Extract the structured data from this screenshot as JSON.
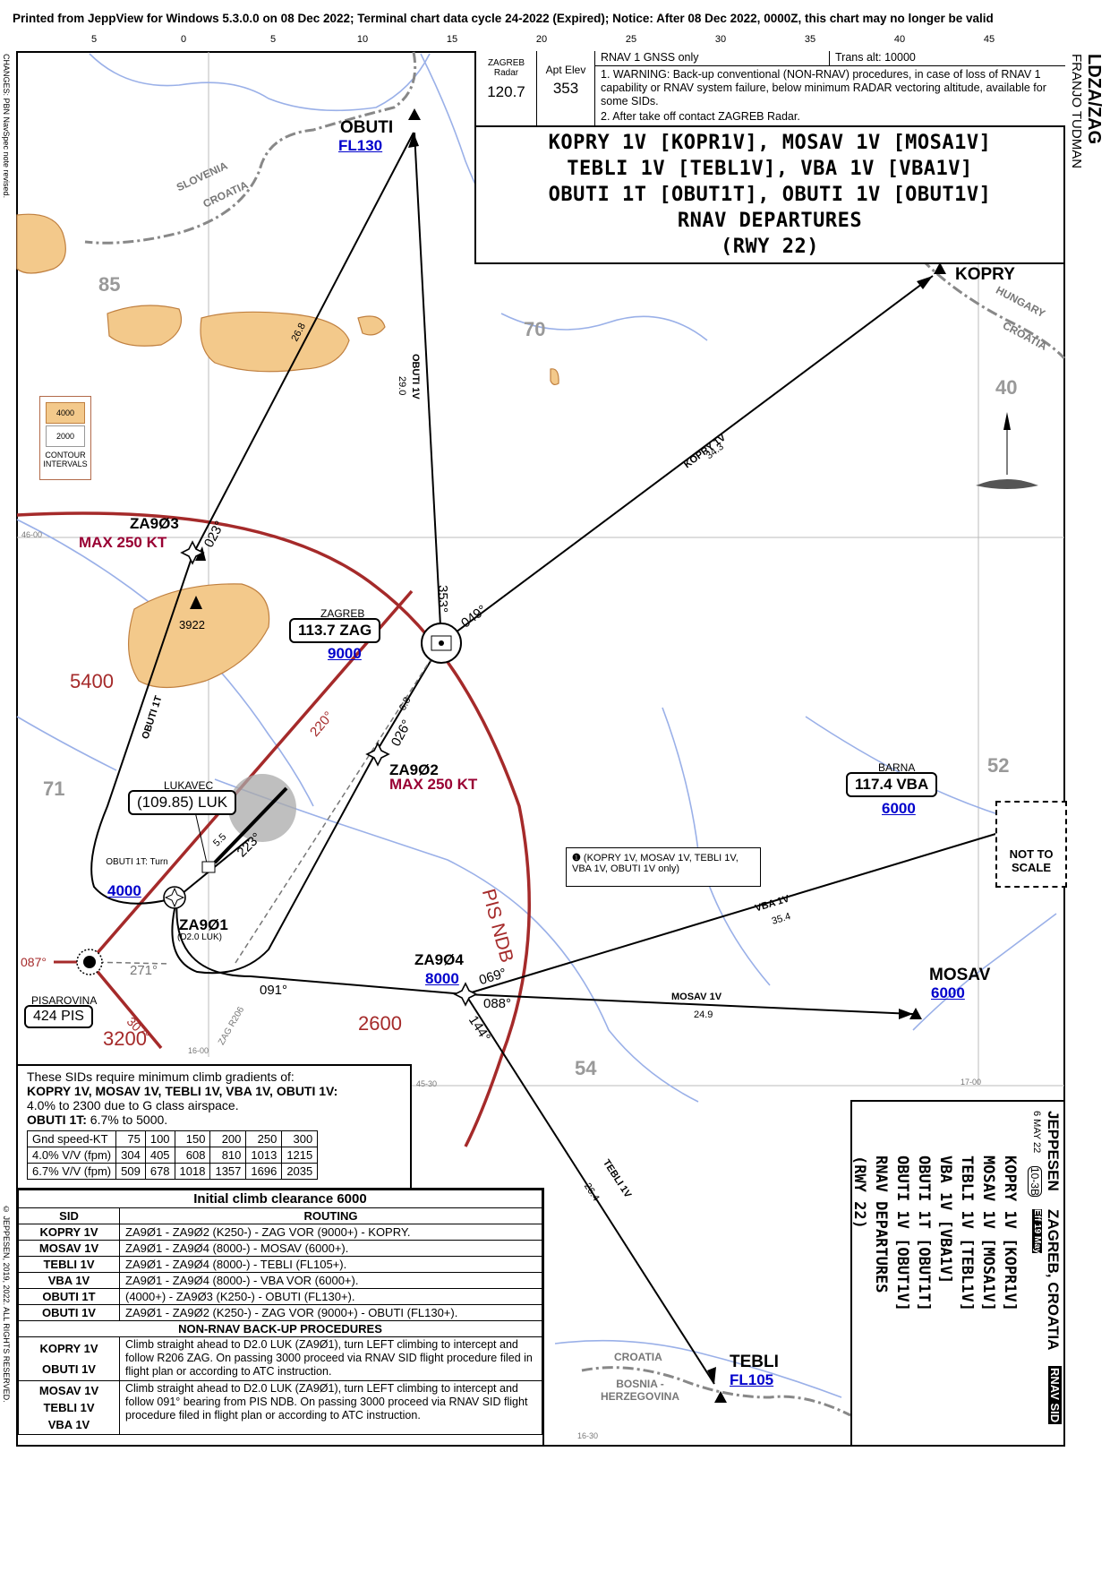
{
  "printed_line": "Printed from JeppView for Windows 5.3.0.0 on 08 Dec 2022; Terminal chart data cycle 24-2022 (Expired); Notice: After 08 Dec 2022, 0000Z, this chart may no longer be valid",
  "scale_labels": [
    "5",
    "0",
    "5",
    "10",
    "15",
    "20",
    "25",
    "30",
    "35",
    "40",
    "45"
  ],
  "side_changes": "CHANGES: PBN NavSpec note revised.",
  "copyright": "© JEPPESEN, 2019, 2022. ALL RIGHTS RESERVED.",
  "ident": {
    "code": "LDZA/ZAG",
    "name": "FRANJO TUDMAN"
  },
  "info": {
    "radar_label": "ZAGREB Radar",
    "radar_freq": "120.7",
    "apt_elev_label": "Apt Elev",
    "apt_elev": "353",
    "rnav_line": "RNAV 1   GNSS only",
    "trans_alt": "Trans alt: 10000",
    "note1": "1. WARNING: Back-up conventional (NON-RNAV) procedures, in case of loss of RNAV 1 capability or RNAV system failure, below minimum RADAR vectoring altitude, available for some SIDs.",
    "note2": "2. After take off contact ZAGREB Radar."
  },
  "title": {
    "line1": "KOPRY 1V [KOPR1V], MOSAV 1V [MOSA1V]",
    "line2": "TEBLI 1V [TEBL1V], VBA 1V [VBA1V]",
    "line3": "OBUTI 1T [OBUT1T], OBUTI 1V [OBUT1V]",
    "line4": "RNAV DEPARTURES",
    "line5": "(RWY 22)"
  },
  "legend": {
    "c1": "4000",
    "c2": "2000",
    "label": "CONTOUR INTERVALS"
  },
  "fixes": {
    "obuti": "OBUTI",
    "obuti_alt": "FL130",
    "kopry": "KOPRY",
    "mosav": "MOSAV",
    "mosav_alt": "6000",
    "tebli": "TEBLI",
    "tebli_alt": "FL105",
    "za903": "ZA9Ø3",
    "za903_spd": "MAX 250 KT",
    "za902": "ZA9Ø2",
    "za902_spd": "MAX 250 KT",
    "za901": "ZA9Ø1",
    "za901_sub": "(D2.0 LUK)",
    "za904": "ZA9Ø4",
    "za904_alt": "8000"
  },
  "navaids": {
    "zag_name": "ZAGREB",
    "zag_freq": "113.7 ZAG",
    "zag_alt": "9000",
    "vba_name": "BARNA",
    "vba_freq": "117.4 VBA",
    "vba_alt": "6000",
    "luk_name": "LUKAVEC",
    "luk_freq": "(109.85) LUK",
    "pis_name": "PISAROVINA",
    "pis_freq": "424 PIS",
    "pis_ndb": "PIS NDB"
  },
  "route_labels": {
    "obuti1v": "OBUTI 1V",
    "obuti1v_dist": "29.0",
    "kopry1v": "KOPRY 1V",
    "kopry1v_dist": "34.3",
    "vba1v": "VBA 1V",
    "vba1v_dist": "35.4",
    "mosav1v": "MOSAV 1V",
    "mosav1v_dist": "24.9",
    "tebli1v": "TEBLI 1V",
    "tebli1v_dist": "26.4",
    "obuti1t": "OBUTI 1T",
    "leg_268": "26.8",
    "leg_68": "6.8",
    "leg_55": "5.5",
    "obuti1t_turn": "OBUTI 1T: Turn",
    "obuti1t_alt": "4000",
    "r206": "ZAG R206"
  },
  "bearings": {
    "b023": "023°",
    "b353": "353°",
    "b049": "049°",
    "b026": "026°",
    "b220": "220°",
    "b223": "223°",
    "b271": "271°",
    "b087": "087°",
    "b091": "091°",
    "b069": "069°",
    "b088": "088°",
    "b144": "144°",
    "b307": "307°"
  },
  "terrain": {
    "e85": "85",
    "e70": "70",
    "e40": "40",
    "e71": "71",
    "e52": "52",
    "e54": "54",
    "peak": "3922",
    "msa5400": "5400",
    "msa2600": "2600",
    "msa3200": "3200"
  },
  "borders": {
    "slovenia": "SLOVENIA",
    "croatia": "CROATIA",
    "hungary": "HUNGARY",
    "croatia2": "CROATIA",
    "croatia3": "CROATIA",
    "bosnia": "BOSNIA -HERZEGOVINA"
  },
  "grid": {
    "lat4600": "46-00",
    "lat4530": "45-30",
    "lon1600": "16-00",
    "lon1700": "17-00",
    "lat1630": "16-30"
  },
  "note_box": "(KOPRY 1V, MOSAV 1V, TEBLI 1V, VBA 1V, OBUTI 1V only)",
  "not_to_scale": "NOT TO SCALE",
  "climb": {
    "intro": "These SIDs require minimum climb gradients of:",
    "sids": "KOPRY 1V, MOSAV 1V, TEBLI 1V, VBA 1V, OBUTI 1V:",
    "grad1": "4.0% to 2300 due to G class airspace.",
    "obuti1t_lbl": "OBUTI 1T:",
    "grad2": "6.7% to 5000.",
    "header": [
      "Gnd speed-KT",
      "75",
      "100",
      "150",
      "200",
      "250",
      "300"
    ],
    "row1": [
      "4.0% V/V (fpm)",
      "304",
      "405",
      "608",
      "810",
      "1013",
      "1215"
    ],
    "row2": [
      "6.7% V/V (fpm)",
      "509",
      "678",
      "1018",
      "1357",
      "1696",
      "2035"
    ]
  },
  "routing": {
    "initial": "Initial climb clearance  6000",
    "col_sid": "SID",
    "col_routing": "ROUTING",
    "rows": [
      {
        "sid": "KOPRY 1V",
        "route": "ZA9Ø1 - ZA9Ø2 (K250-) - ZAG VOR (9000+) - KOPRY."
      },
      {
        "sid": "MOSAV 1V",
        "route": "ZA9Ø1 - ZA9Ø4 (8000-) - MOSAV (6000+)."
      },
      {
        "sid": "TEBLI 1V",
        "route": "ZA9Ø1 - ZA9Ø4 (8000-) - TEBLI (FL105+)."
      },
      {
        "sid": "VBA 1V",
        "route": "ZA9Ø1 - ZA9Ø4 (8000-) - VBA VOR (6000+)."
      },
      {
        "sid": "OBUTI 1T",
        "route": "(4000+) - ZA9Ø3 (K250-) - OBUTI (FL130+)."
      },
      {
        "sid": "OBUTI 1V",
        "route": "ZA9Ø1 - ZA9Ø2 (K250-) - ZAG VOR (9000+) - OBUTI (FL130+)."
      }
    ],
    "backup_hdr": "NON-RNAV BACK-UP PROCEDURES",
    "backup1_sids": [
      "KOPRY 1V",
      "OBUTI 1V"
    ],
    "backup1_text": "Climb straight ahead to D2.0 LUK (ZA9Ø1), turn LEFT climbing to intercept and follow R206 ZAG. On passing 3000 proceed via RNAV SID flight procedure filed in flight plan or according to ATC instruction.",
    "backup2_sids": [
      "MOSAV 1V",
      "TEBLI 1V",
      "VBA 1V"
    ],
    "backup2_text": "Climb straight ahead to D2.0 LUK (ZA9Ø1), turn LEFT climbing to intercept and follow 091° bearing from PIS NDB. On passing 3000 proceed via RNAV SID flight procedure filed in flight plan or according to ATC instruction."
  },
  "jeppesen": {
    "brand": "JEPPESEN",
    "date": "6 MAY 22",
    "chart_no": "10-3B",
    "eff": "Eff 19 May",
    "city": "ZAGREB, CROATIA",
    "type": "RNAV SID",
    "t1": "KOPRY 1V [KOPR1V]",
    "t2": "MOSAV 1V [MOSA1V]",
    "t3": "TEBLI 1V [TEBL1V]",
    "t4": "VBA 1V [VBA1V]",
    "t5": "OBUTI 1T [OBUT1T]",
    "t6": "OBUTI 1V [OBUT1V]",
    "t7": "RNAV DEPARTURES",
    "t8": "(RWY 22)"
  },
  "colors": {
    "rnav_route": "#000000",
    "msa_ring": "#a52a2a",
    "terrain": "#f3c98b",
    "water": "#9ab0e8",
    "alt_blue": "#0000cc",
    "speed": "#990033"
  }
}
